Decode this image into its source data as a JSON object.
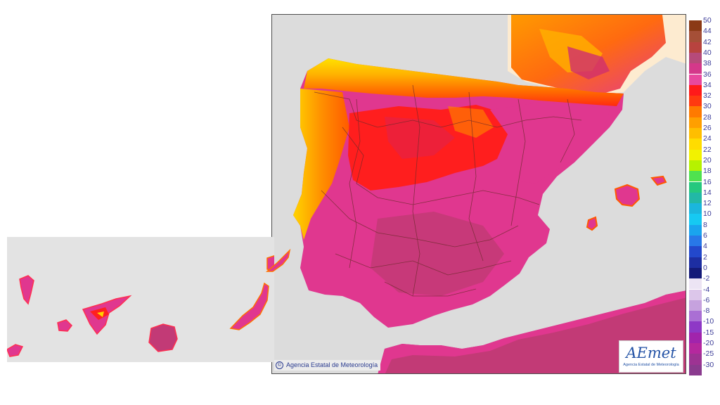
{
  "credit": "Agencia Estatal de Meteorología",
  "logo": {
    "word": "AEmet",
    "subtitle": "Agencia Estatal de Meteorología"
  },
  "legend": {
    "labels": [
      "50",
      "44",
      "42",
      "40",
      "38",
      "36",
      "34",
      "32",
      "30",
      "28",
      "26",
      "24",
      "22",
      "20",
      "18",
      "16",
      "14",
      "12",
      "10",
      "8",
      "6",
      "4",
      "2",
      "0",
      "-2",
      "-4",
      "-6",
      "-8",
      "-10",
      "-15",
      "-20",
      "-25",
      "-30"
    ],
    "colors": [
      "#8b3a16",
      "#a54f37",
      "#b8433f",
      "#b64a7a",
      "#d4388a",
      "#e8489e",
      "#ff1a1a",
      "#ff3a10",
      "#ff7a00",
      "#ff9f00",
      "#ffbe00",
      "#ffdc00",
      "#f2f200",
      "#b6f200",
      "#4fe24f",
      "#25c87e",
      "#22b8a6",
      "#1bb6dd",
      "#16c9f2",
      "#1aa4ee",
      "#2878e8",
      "#2348cc",
      "#1d2ea2",
      "#141a78",
      "#ece4f4",
      "#dcc6ea",
      "#c6a2de",
      "#aa6fd4",
      "#8e38c6",
      "#a124ac",
      "#b5289e",
      "#9d3393",
      "#8a3a8e"
    ]
  },
  "colors": {
    "sea": "#dcdcdc",
    "hot_magenta": "#e0378f",
    "very_hot": "#c23a76",
    "red": "#ff1e1e",
    "orange": "#ff8a00",
    "yellow": "#ffd800",
    "inset_sea": "#e3e3e3",
    "france_land": "#fdebd0"
  }
}
